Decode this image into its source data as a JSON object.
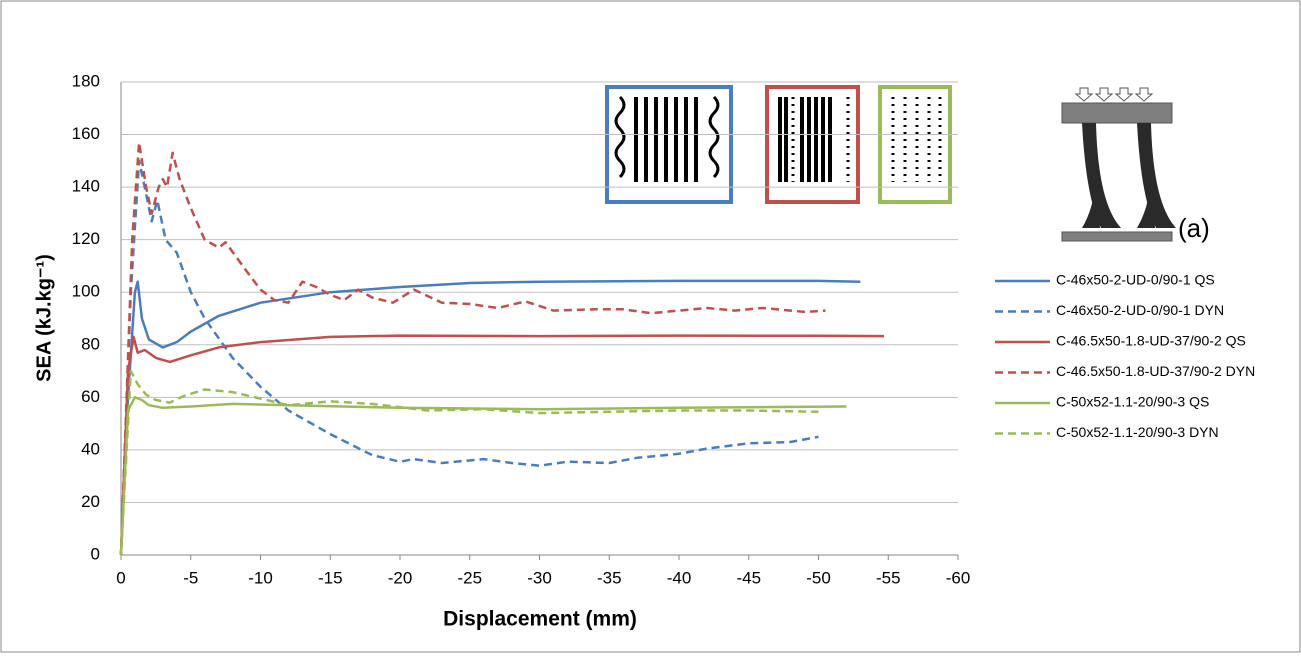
{
  "chart_data": {
    "type": "line",
    "xlabel": "Displacement (mm)",
    "ylabel": "SEA (kJ.kg⁻¹)",
    "annotation": "(a)",
    "xlim": [
      0,
      -60
    ],
    "xticks": [
      0,
      -5,
      -10,
      -15,
      -20,
      -25,
      -30,
      -35,
      -40,
      -45,
      -50,
      -55,
      -60
    ],
    "ylim": [
      0,
      180
    ],
    "yticks": [
      0,
      20,
      40,
      60,
      80,
      100,
      120,
      140,
      160,
      180
    ],
    "grid": true,
    "series": [
      {
        "name": "C-46x50-2-UD-0/90-1 QS",
        "color": "#4a7ebb",
        "style": "solid",
        "x": [
          0,
          -0.5,
          -1,
          -1.2,
          -1.5,
          -2,
          -3,
          -4,
          -5,
          -7,
          -10,
          -15,
          -20,
          -25,
          -30,
          -40,
          -50,
          -53
        ],
        "values": [
          0,
          60,
          100,
          104,
          90,
          82,
          79,
          81,
          85,
          91,
          96,
          100,
          102,
          103.5,
          104,
          104.3,
          104.3,
          104
        ]
      },
      {
        "name": "C-46x50-2-UD-0/90-1 DYN",
        "color": "#4a7ebb",
        "style": "dashed",
        "x": [
          0,
          -0.7,
          -1.3,
          -1.7,
          -2.2,
          -2.6,
          -3.2,
          -4,
          -5,
          -6,
          -8,
          -10,
          -12,
          -15,
          -18,
          -20,
          -21,
          -23,
          -26,
          -28,
          -30,
          -32,
          -35,
          -37,
          -40,
          -42,
          -45,
          -48,
          -50
        ],
        "values": [
          0,
          100,
          150,
          140,
          127,
          135,
          120,
          115,
          100,
          90,
          75,
          64,
          55,
          46,
          38,
          35.5,
          36.5,
          35,
          36.5,
          35,
          34,
          35.5,
          35,
          37,
          38.5,
          40.5,
          42.5,
          43,
          45
        ]
      },
      {
        "name": "C-46.5x50-1.8-UD-37/90-2 QS",
        "color": "#c0504d",
        "style": "solid",
        "x": [
          0,
          -0.5,
          -0.9,
          -1.2,
          -1.7,
          -2.5,
          -3.5,
          -5,
          -7,
          -10,
          -15,
          -20,
          -30,
          -40,
          -50,
          -54.7
        ],
        "values": [
          0,
          70,
          83,
          77,
          78,
          75,
          73.5,
          76,
          79,
          81,
          83,
          83.5,
          83.3,
          83.5,
          83.4,
          83.3
        ]
      },
      {
        "name": "C-46.5x50-1.8-UD-37/90-2 DYN",
        "color": "#c0504d",
        "style": "dashed",
        "x": [
          0,
          -0.8,
          -1.3,
          -1.8,
          -2.2,
          -2.7,
          -3,
          -3.3,
          -3.7,
          -4.2,
          -5,
          -6,
          -7,
          -7.5,
          -9,
          -10,
          -11,
          -12,
          -13,
          -14,
          -15,
          -16,
          -17,
          -18,
          -19.5,
          -21,
          -23,
          -25,
          -27,
          -29,
          -31,
          -34,
          -36,
          -38,
          -42,
          -44,
          -46,
          -48,
          -49,
          -50.5
        ],
        "values": [
          0,
          120,
          157,
          140,
          130,
          140,
          143,
          140,
          153,
          143,
          132,
          120,
          117,
          119,
          108,
          101,
          97,
          96,
          104,
          102,
          99,
          97,
          101,
          98,
          96,
          101,
          96,
          95.5,
          94,
          96.5,
          93,
          93.5,
          93.5,
          92,
          94,
          93,
          94,
          93,
          92.5,
          93
        ]
      },
      {
        "name": "C-50x52-1.1-20/90-3 QS",
        "color": "#9bbb59",
        "style": "solid",
        "x": [
          0,
          -0.5,
          -1,
          -1.5,
          -2,
          -3,
          -5,
          -8,
          -12,
          -20,
          -30,
          -40,
          -52
        ],
        "values": [
          0,
          55,
          60,
          59,
          57,
          56,
          56.5,
          57.5,
          57,
          56,
          55.5,
          56,
          56.5
        ]
      },
      {
        "name": "C-50x52-1.1-20/90-3 DYN",
        "color": "#9bbb59",
        "style": "dashed",
        "x": [
          0,
          -0.7,
          -1.2,
          -1.8,
          -2.5,
          -3.5,
          -4.5,
          -6,
          -8,
          -10,
          -12,
          -15,
          -18,
          -22,
          -26,
          -30,
          -35,
          -40,
          -45,
          -50
        ],
        "values": [
          0,
          70,
          65,
          61,
          59,
          58,
          60.5,
          63,
          62,
          59.5,
          57,
          58.5,
          57.5,
          55,
          55.5,
          54,
          54.5,
          55,
          55,
          54.5
        ]
      }
    ]
  }
}
